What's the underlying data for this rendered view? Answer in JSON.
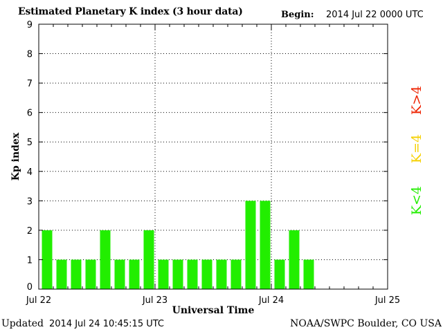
{
  "header": {
    "title": "Estimated Planetary K index (3 hour data)",
    "begin_label": "Begin:",
    "begin_value": "2014 Jul 22 0000 UTC"
  },
  "footer": {
    "updated_label": "Updated",
    "updated_value": "2014 Jul 24 10:45:15 UTC",
    "credit": "NOAA/SWPC Boulder, CO USA"
  },
  "legend": [
    {
      "label": "K<4",
      "color": "#22ee00"
    },
    {
      "label": "K=4",
      "color": "#f5d000"
    },
    {
      "label": "K>4",
      "color": "#ee2200"
    }
  ],
  "chart_data": {
    "type": "bar",
    "title": "Estimated Planetary K index (3 hour data)",
    "xlabel": "Universal Time",
    "ylabel": "Kp index",
    "ylim": [
      0,
      9
    ],
    "yticks": [
      0,
      1,
      2,
      3,
      4,
      5,
      6,
      7,
      8,
      9
    ],
    "xticks": [
      "Jul 22",
      "Jul 23",
      "Jul 24",
      "Jul 25"
    ],
    "grid": true,
    "legend_position": "right",
    "bar_color": "#22ee00",
    "categories": [
      "Jul 22 00",
      "Jul 22 03",
      "Jul 22 06",
      "Jul 22 09",
      "Jul 22 12",
      "Jul 22 15",
      "Jul 22 18",
      "Jul 22 21",
      "Jul 23 00",
      "Jul 23 03",
      "Jul 23 06",
      "Jul 23 09",
      "Jul 23 12",
      "Jul 23 15",
      "Jul 23 18",
      "Jul 23 21",
      "Jul 24 00",
      "Jul 24 03",
      "Jul 24 06"
    ],
    "values": [
      2,
      1,
      1,
      1,
      2,
      1,
      1,
      2,
      1,
      1,
      1,
      1,
      1,
      1,
      3,
      3,
      1,
      2,
      1
    ],
    "total_slots": 24
  }
}
